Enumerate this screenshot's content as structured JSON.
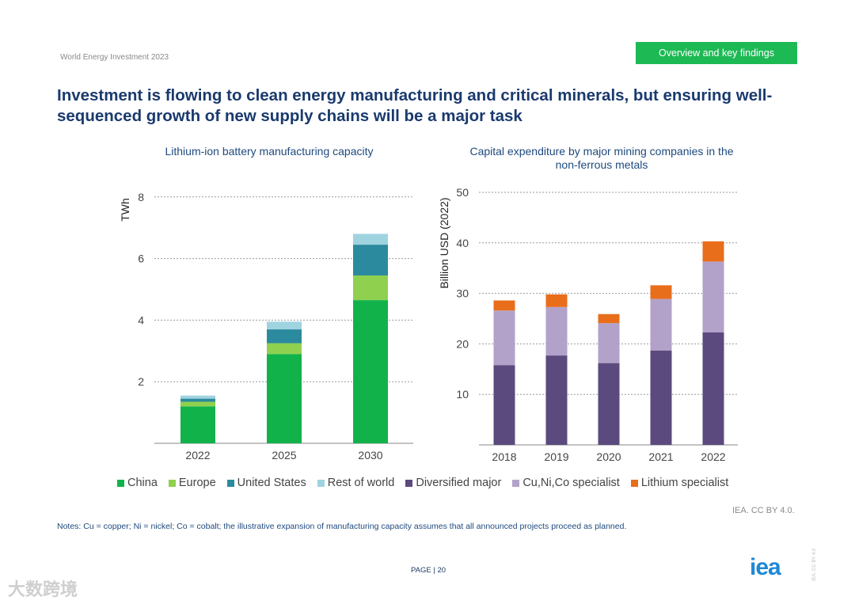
{
  "header": {
    "doc_label": "World Energy Investment 2023",
    "section_badge": "Overview and key findings"
  },
  "title": "Investment is flowing to clean energy manufacturing and critical minerals, but ensuring well-sequenced growth of new supply chains will be a major task",
  "colors": {
    "china": "#12b24b",
    "europe": "#8fd14f",
    "united_states": "#2b8a9e",
    "rest_of_world": "#9fd3e0",
    "diversified_major": "#5b4a7e",
    "cu_ni_co_specialist": "#b2a2ca",
    "lithium_specialist": "#e86e1c"
  },
  "chart_data": [
    {
      "type": "bar",
      "stacked": true,
      "title": "Lithium-ion battery manufacturing capacity",
      "ylabel": "TWh",
      "xlabel": "",
      "categories": [
        "2022",
        "2025",
        "2030"
      ],
      "yticks": [
        "2",
        "4",
        "6",
        "8"
      ],
      "ylim": [
        0,
        8.4
      ],
      "grid": true,
      "series": [
        {
          "name": "China",
          "color": "#12b24b",
          "values": [
            1.2,
            2.9,
            4.65
          ]
        },
        {
          "name": "Europe",
          "color": "#8fd14f",
          "values": [
            0.15,
            0.35,
            0.8
          ]
        },
        {
          "name": "United States",
          "color": "#2b8a9e",
          "values": [
            0.1,
            0.45,
            1.0
          ]
        },
        {
          "name": "Rest of world",
          "color": "#9fd3e0",
          "values": [
            0.1,
            0.25,
            0.35
          ]
        }
      ]
    },
    {
      "type": "bar",
      "stacked": true,
      "title": "Capital expenditure by major mining companies in the non-ferrous metals",
      "ylabel": "Billion USD (2022)",
      "xlabel": "",
      "categories": [
        "2018",
        "2019",
        "2020",
        "2021",
        "2022"
      ],
      "yticks": [
        "10",
        "20",
        "30",
        "40",
        "50"
      ],
      "ylim": [
        0,
        50
      ],
      "grid": true,
      "series": [
        {
          "name": "Diversified major",
          "color": "#5b4a7e",
          "values": [
            15.8,
            17.7,
            16.2,
            18.7,
            22.3
          ]
        },
        {
          "name": "Cu,Ni,Co specialist",
          "color": "#b2a2ca",
          "values": [
            10.8,
            9.6,
            7.9,
            10.2,
            14.0
          ]
        },
        {
          "name": "Lithium specialist",
          "color": "#e86e1c",
          "values": [
            2.0,
            2.5,
            1.8,
            2.7,
            4.0
          ]
        }
      ]
    }
  ],
  "legend": [
    {
      "label": "China",
      "color": "#12b24b"
    },
    {
      "label": "Europe",
      "color": "#8fd14f"
    },
    {
      "label": "United States",
      "color": "#2b8a9e"
    },
    {
      "label": "Rest of world",
      "color": "#9fd3e0"
    },
    {
      "label": "Diversified major",
      "color": "#5b4a7e"
    },
    {
      "label": "Cu,Ni,Co specialist",
      "color": "#b2a2ca"
    },
    {
      "label": "Lithium specialist",
      "color": "#e86e1c"
    }
  ],
  "source": "IEA. CC BY 4.0.",
  "notes": "Notes: Cu = copper; Ni = nickel; Co = cobalt; the illustrative expansion of manufacturing capacity assumes that all announced projects proceed as planned.",
  "page": "PAGE | 20",
  "logo": "iea",
  "side_credit": "IEA. CC BY 4.0",
  "watermark": "大数跨境"
}
